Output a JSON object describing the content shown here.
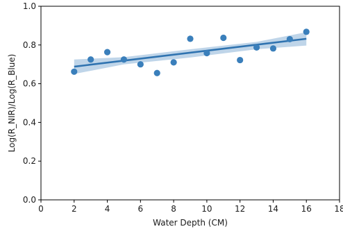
{
  "chart_data": {
    "type": "scatter",
    "xlabel": "Water Depth (CM)",
    "ylabel": "Log(R_NIR)/Log(R_Blue)",
    "xlim": [
      0,
      18
    ],
    "ylim": [
      0.0,
      1.0
    ],
    "x_ticks": [
      "0",
      "2",
      "4",
      "6",
      "8",
      "10",
      "12",
      "14",
      "16",
      "18"
    ],
    "y_ticks": [
      "0.0",
      "0.2",
      "0.4",
      "0.6",
      "0.8",
      "1.0"
    ],
    "grid": false,
    "points": [
      {
        "x": 2,
        "y": 0.662
      },
      {
        "x": 3,
        "y": 0.725
      },
      {
        "x": 4,
        "y": 0.763
      },
      {
        "x": 5,
        "y": 0.725
      },
      {
        "x": 6,
        "y": 0.7
      },
      {
        "x": 7,
        "y": 0.655
      },
      {
        "x": 8,
        "y": 0.71
      },
      {
        "x": 9,
        "y": 0.832
      },
      {
        "x": 10,
        "y": 0.758
      },
      {
        "x": 11,
        "y": 0.837
      },
      {
        "x": 12,
        "y": 0.722
      },
      {
        "x": 13,
        "y": 0.787
      },
      {
        "x": 14,
        "y": 0.782
      },
      {
        "x": 15,
        "y": 0.83
      },
      {
        "x": 16,
        "y": 0.868
      }
    ],
    "regression": {
      "x_start": 2,
      "y_start": 0.688,
      "x_end": 16,
      "y_end": 0.832
    },
    "confidence_band": [
      {
        "x": 2,
        "lower": 0.65,
        "upper": 0.725
      },
      {
        "x": 5,
        "lower": 0.7,
        "upper": 0.737
      },
      {
        "x": 9,
        "lower": 0.735,
        "upper": 0.778
      },
      {
        "x": 13,
        "lower": 0.778,
        "upper": 0.816
      },
      {
        "x": 16,
        "lower": 0.797,
        "upper": 0.866
      }
    ],
    "colors": {
      "points": "#3a7fbb",
      "line": "#2f73b0",
      "band": "#a9c7e2",
      "axes": "#000000"
    }
  }
}
